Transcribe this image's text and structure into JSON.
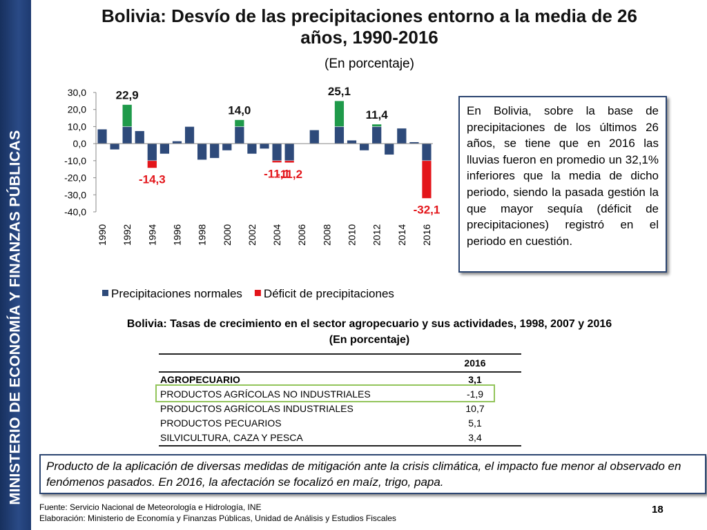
{
  "sidebar": "MINISTERIO DE ECONOMÍA Y FINANZAS PÚBLICAS",
  "chart_data": {
    "type": "bar",
    "stacked": true,
    "title": "Bolivia: Desvío de las precipitaciones entorno a la media de 26 años, 1990-2016",
    "subtitle": "(En porcentaje)",
    "categories": [
      "1990",
      null,
      "1992",
      null,
      "1994",
      null,
      "1996",
      null,
      "1998",
      null,
      "2000",
      null,
      "2002",
      null,
      "2004",
      null,
      "2006",
      null,
      "2008",
      null,
      "2010",
      null,
      "2012",
      null,
      "2014",
      null,
      "2016"
    ],
    "series": [
      {
        "name": "Precipitaciones normales",
        "color": "#2e4a7a",
        "values": [
          8.5,
          -3.5,
          10,
          7.5,
          -10,
          -6,
          1.5,
          10,
          -9.5,
          -8.5,
          -4,
          10,
          -6,
          -3,
          -10,
          -10,
          0,
          8,
          0,
          10,
          2,
          -4,
          10,
          -6.5,
          9,
          1,
          -10
        ]
      },
      {
        "name": "Déficit de precipitaciones",
        "color": "#e3151a",
        "values": [
          null,
          null,
          null,
          null,
          -4.3,
          null,
          null,
          null,
          null,
          null,
          null,
          null,
          null,
          null,
          -1.1,
          -1.2,
          null,
          null,
          null,
          null,
          null,
          null,
          null,
          null,
          null,
          null,
          -22.1
        ]
      },
      {
        "color": "#1f9a4a",
        "values": [
          null,
          null,
          12.9,
          null,
          null,
          null,
          null,
          null,
          null,
          null,
          null,
          4,
          null,
          null,
          null,
          null,
          null,
          null,
          null,
          15.1,
          null,
          null,
          1.4,
          null,
          null,
          null,
          null
        ]
      }
    ],
    "annotations": [
      {
        "category": "1992",
        "value": 22.9,
        "text": "22,9"
      },
      {
        "category": "1994",
        "value": -14.3,
        "text": "-14,3"
      },
      {
        "category": "2001",
        "value": 14.0,
        "text": "14,0"
      },
      {
        "category": "2004",
        "value": -11.1,
        "text": "-11,1"
      },
      {
        "category": "2005",
        "value": -11.2,
        "text": "-11,2"
      },
      {
        "category": "2009",
        "value": 25.1,
        "text": "25,1"
      },
      {
        "category": "2012",
        "value": 11.4,
        "text": "11,4"
      },
      {
        "category": "2016",
        "value": -32.1,
        "text": "-32,1"
      }
    ],
    "first_year": 1990,
    "ylim": [
      -40,
      30
    ],
    "yticks": [
      {
        "value": -40,
        "label": "-40,0"
      },
      {
        "value": -30,
        "label": "-30,0"
      },
      {
        "value": -20,
        "label": "-20,0"
      },
      {
        "value": -10,
        "label": "-10,0"
      },
      {
        "value": 0,
        "label": "0,0"
      },
      {
        "value": 10,
        "label": "10,0"
      },
      {
        "value": 20,
        "label": "20,0"
      },
      {
        "value": 30,
        "label": "30,0"
      }
    ],
    "legend": "bottom"
  },
  "note": "En Bolivia, sobre la base de precipitaciones de los últimos 26 años, se tiene que en 2016 las lluvias fueron en promedio un 32,1% inferiores que la media de dicho periodo, siendo la pasada gestión la que mayor sequía (déficit de precipitaciones) registró en el periodo en cuestión.",
  "table": {
    "title": "Bolivia: Tasas de crecimiento en el sector agropecuario y sus actividades, 1998, 2007 y 2016",
    "subtitle": "(En porcentaje)",
    "column": "2016",
    "rows": [
      [
        "AGROPECUARIO",
        "3,1"
      ],
      [
        "PRODUCTOS AGRÍCOLAS NO INDUSTRIALES",
        "-1,9"
      ],
      [
        "PRODUCTOS AGRÍCOLAS INDUSTRIALES",
        "10,7"
      ],
      [
        "PRODUCTOS PECUARIOS",
        "5,1"
      ],
      [
        "SILVICULTURA, CAZA Y PESCA",
        "3,4"
      ]
    ]
  },
  "conclusion": "Producto de la aplicación de diversas medidas de mitigación ante la crisis climática, el impacto fue menor al observado en fenómenos pasados. En 2016, la afectación se focalizó en maíz, trigo, papa.",
  "footer": {
    "source": "Fuente: Servicio Nacional de Meteorología e Hidrología, INE",
    "credit": "Elaboración: Ministerio de Economía y Finanzas Públicas, Unidad de Análisis y Estudios Fiscales"
  },
  "page_number": 18
}
